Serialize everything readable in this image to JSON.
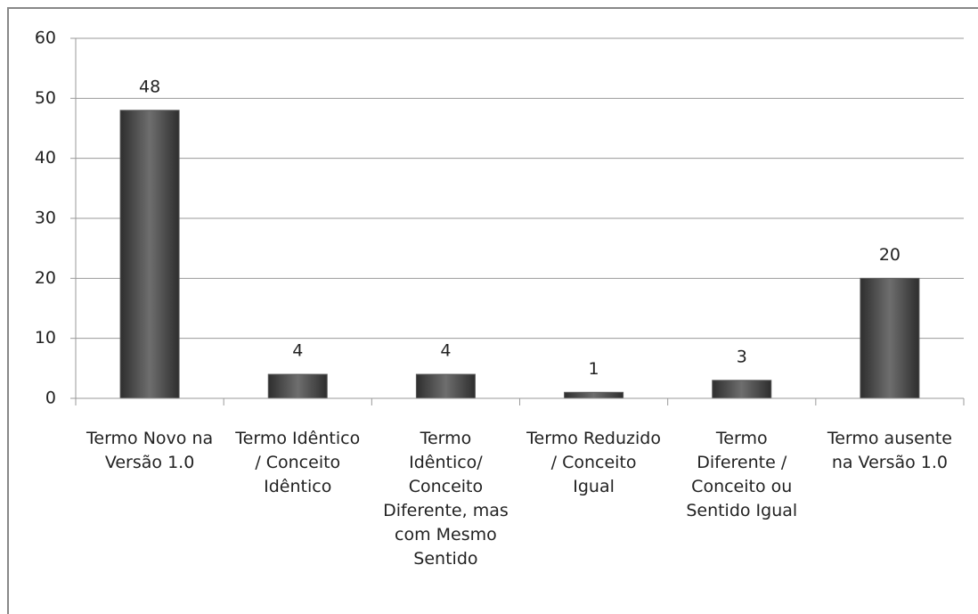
{
  "chart_data": {
    "type": "bar",
    "categories": [
      "Termo Novo na Versão 1.0",
      "Termo Idêntico / Conceito Idêntico",
      "Termo Idêntico/ Conceito Diferente, mas com Mesmo Sentido",
      "Termo Reduzido / Conceito Igual",
      "Termo Diferente / Conceito ou Sentido Igual",
      "Termo ausente na Versão 1.0"
    ],
    "values": [
      48,
      4,
      4,
      1,
      3,
      20
    ],
    "color": "#595959",
    "ylim": [
      0,
      60
    ],
    "yticks": [
      0,
      10,
      20,
      30,
      40,
      50,
      60
    ],
    "grid": true
  }
}
